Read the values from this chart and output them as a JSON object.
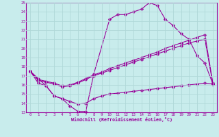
{
  "xlabel": "Windchill (Refroidissement éolien,°C)",
  "background_color": "#c8ecec",
  "grid_color": "#b0d8d8",
  "line_color": "#990099",
  "xlim": [
    -0.5,
    23.5
  ],
  "ylim": [
    13,
    25
  ],
  "yticks": [
    13,
    14,
    15,
    16,
    17,
    18,
    19,
    20,
    21,
    22,
    23,
    24,
    25
  ],
  "xticks": [
    0,
    1,
    2,
    3,
    4,
    5,
    6,
    7,
    8,
    9,
    10,
    11,
    12,
    13,
    14,
    15,
    16,
    17,
    18,
    19,
    20,
    21,
    22,
    23
  ],
  "series": [
    {
      "x": [
        0,
        1,
        2,
        3,
        4,
        5,
        6,
        7,
        8,
        10,
        11,
        12,
        13,
        14,
        15,
        16,
        17,
        18,
        19,
        20,
        21,
        22,
        23
      ],
      "y": [
        17.5,
        16.7,
        15.9,
        14.8,
        14.5,
        13.7,
        13.1,
        13.1,
        17.2,
        23.2,
        23.7,
        23.7,
        24.0,
        24.3,
        25.0,
        24.7,
        23.2,
        22.5,
        21.6,
        21.0,
        19.2,
        18.4,
        16.1
      ]
    },
    {
      "x": [
        0,
        1,
        2,
        3,
        4,
        5,
        6,
        7,
        8,
        9,
        10,
        11,
        12,
        13,
        14,
        15,
        16,
        17,
        18,
        19,
        20,
        21,
        22,
        23
      ],
      "y": [
        17.5,
        16.2,
        15.9,
        14.8,
        14.5,
        14.2,
        13.9,
        14.0,
        14.5,
        14.8,
        15.0,
        15.1,
        15.2,
        15.3,
        15.4,
        15.5,
        15.6,
        15.7,
        15.8,
        15.9,
        16.0,
        16.1,
        16.2,
        16.1
      ]
    },
    {
      "x": [
        0,
        1,
        2,
        3,
        4,
        5,
        6,
        7,
        8,
        9,
        10,
        11,
        12,
        13,
        14,
        15,
        16,
        17,
        18,
        19,
        20,
        21,
        22,
        23
      ],
      "y": [
        17.5,
        16.5,
        16.3,
        16.1,
        15.8,
        15.9,
        16.2,
        16.6,
        17.0,
        17.3,
        17.6,
        17.9,
        18.2,
        18.5,
        18.8,
        19.1,
        19.4,
        19.7,
        20.0,
        20.3,
        20.6,
        20.8,
        21.0,
        16.1
      ]
    },
    {
      "x": [
        0,
        1,
        2,
        3,
        4,
        5,
        6,
        7,
        8,
        9,
        10,
        11,
        12,
        13,
        14,
        15,
        16,
        17,
        18,
        19,
        20,
        21,
        22,
        23
      ],
      "y": [
        17.5,
        16.6,
        16.4,
        16.2,
        15.9,
        16.0,
        16.3,
        16.7,
        17.1,
        17.4,
        17.8,
        18.1,
        18.4,
        18.7,
        19.0,
        19.3,
        19.6,
        20.0,
        20.3,
        20.6,
        20.9,
        21.2,
        21.5,
        16.2
      ]
    }
  ]
}
